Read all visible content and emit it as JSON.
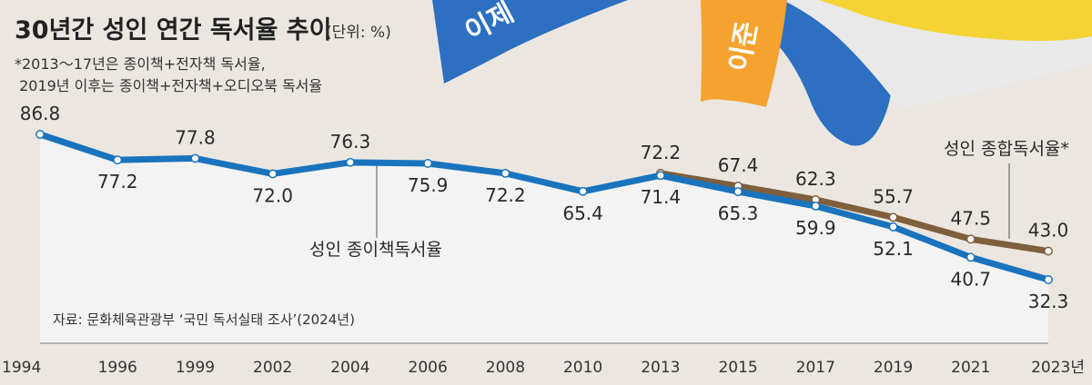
{
  "chart_data": {
    "type": "line",
    "title": "30년간 성인 연간 독서율 추이",
    "unit": "(단위: %)",
    "notes": [
      "*2013～17년은 종이책+전자책 독서율,",
      " 2019년 이후는 종이책+전자책+오디오북 독서율"
    ],
    "source": "자료: 문화체육관광부 ‘국민 독서실태 조사’(2024년)",
    "categories": [
      "1994",
      "1996",
      "1999",
      "2002",
      "2004",
      "2006",
      "2008",
      "2010",
      "2013",
      "2015",
      "2017",
      "2019",
      "2021",
      "2023년"
    ],
    "series": [
      {
        "name": "성인 종이책독서율",
        "color": "#1a73bd",
        "values": [
          86.8,
          77.2,
          77.8,
          72.0,
          76.3,
          75.9,
          72.2,
          65.4,
          71.4,
          65.3,
          59.9,
          52.1,
          40.7,
          32.3
        ],
        "labels": [
          "86.8",
          "77.2",
          "77.8",
          "72.0",
          "76.3",
          "75.9",
          "72.2",
          "65.4",
          "71.4",
          "65.3",
          "59.9",
          "52.1",
          "40.7",
          "32.3"
        ]
      },
      {
        "name": "성인 종합독서율*",
        "color": "#7f5f3c",
        "values": [
          null,
          null,
          null,
          null,
          null,
          null,
          null,
          null,
          72.2,
          67.4,
          62.3,
          55.7,
          47.5,
          43.0
        ],
        "labels": [
          null,
          null,
          null,
          null,
          null,
          null,
          null,
          null,
          "72.2",
          "67.4",
          "62.3",
          "55.7",
          "47.5",
          "43.0"
        ]
      }
    ],
    "ylim": [
      30,
      90
    ],
    "grid": false,
    "legend": "inline-annotations"
  },
  "decoration": {
    "book_blue": "#2d6fc0",
    "book_orange": "#f5a22e",
    "book_yellow": "#f6d335",
    "book_text_blue": "이제",
    "book_text_orange": "이준"
  }
}
